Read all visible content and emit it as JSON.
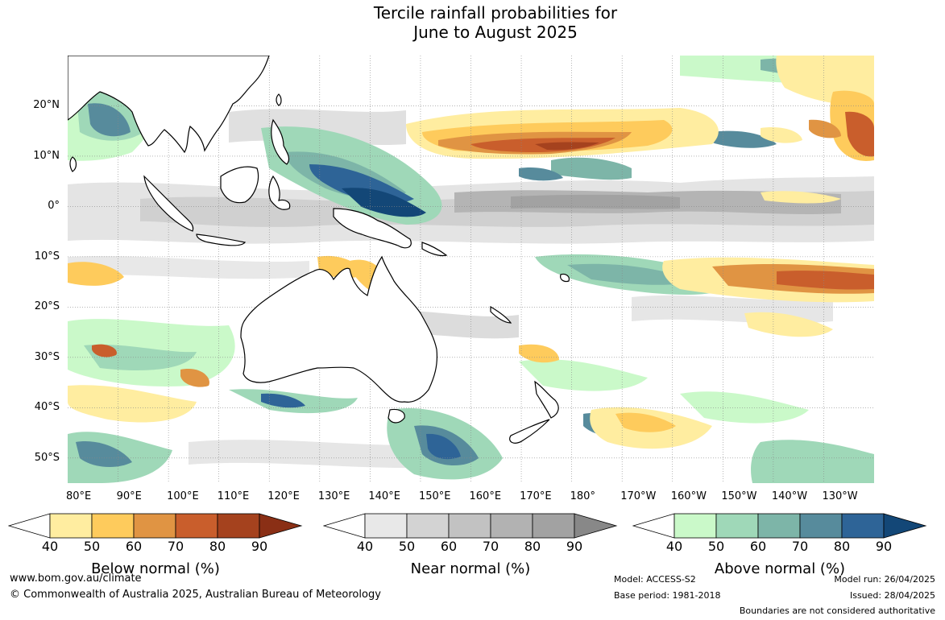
{
  "title": {
    "line1": "Tercile rainfall probabilities for",
    "line2": "June to August 2025"
  },
  "map": {
    "lon_range": [
      80,
      240
    ],
    "lat_range": [
      -55,
      30
    ],
    "lat_labels": [
      "20°N",
      "10°N",
      "0°",
      "10°S",
      "20°S",
      "30°S",
      "40°S",
      "50°S"
    ],
    "lon_labels": [
      "80°E",
      "90°E",
      "100°E",
      "110°E",
      "120°E",
      "130°E",
      "140°E",
      "150°E",
      "160°E",
      "170°E",
      "180°",
      "170°W",
      "160°W",
      "150°W",
      "140°W",
      "130°W"
    ],
    "land_color": "#ffffff",
    "coast_color": "#000000"
  },
  "legends": {
    "below": {
      "title": "Below normal (%)",
      "ticks": [
        "40",
        "50",
        "60",
        "70",
        "80",
        "90"
      ],
      "colors": [
        "#ffffff",
        "#ffeda0",
        "#fecb5c",
        "#e09443",
        "#c95e2c",
        "#a5421e",
        "#8a2f15"
      ]
    },
    "near": {
      "title": "Near normal (%)",
      "ticks": [
        "40",
        "50",
        "60",
        "70",
        "80",
        "90"
      ],
      "colors": [
        "#ffffff",
        "#e8e8e8",
        "#d3d3d3",
        "#c2c2c2",
        "#b2b2b2",
        "#a2a2a2",
        "#888888"
      ]
    },
    "above": {
      "title": "Above normal (%)",
      "ticks": [
        "40",
        "50",
        "60",
        "70",
        "80",
        "90"
      ],
      "colors": [
        "#ffffff",
        "#caf9c9",
        "#9fd8b8",
        "#7db5a8",
        "#578b9c",
        "#2e6497",
        "#134777"
      ]
    }
  },
  "footer": {
    "url": "www.bom.gov.au/climate",
    "copyright": "© Commonwealth of Australia 2025, Australian Bureau of Meteorology",
    "model": "Model: ACCESS-S2",
    "base_period": "Base period: 1981-2018",
    "model_run": "Model run: 26/04/2025",
    "issued": "Issued: 28/04/2025",
    "disclaimer": "Boundaries are not considered authoritative"
  }
}
